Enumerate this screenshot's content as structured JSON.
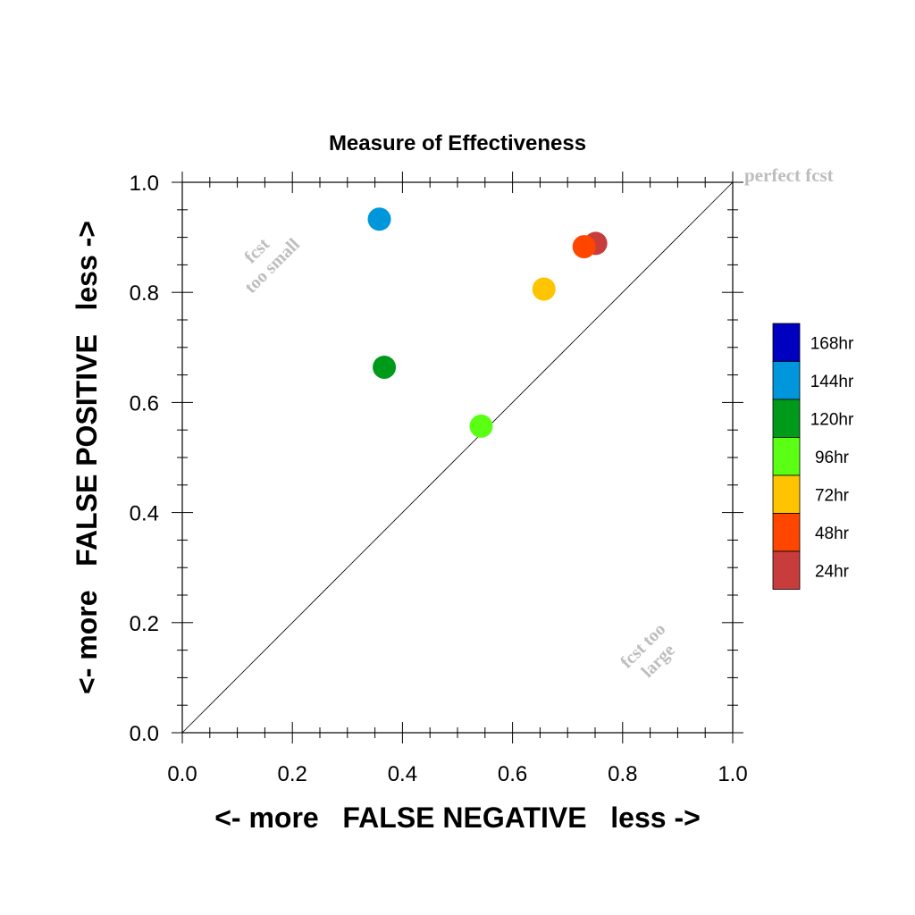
{
  "chart_data": {
    "type": "scatter",
    "title": "Measure of Effectiveness",
    "xlabel": "<- more   FALSE NEGATIVE   less ->",
    "ylabel": "<- more   FALSE POSITIVE   less ->",
    "xlim": [
      0.0,
      1.0
    ],
    "ylim": [
      0.0,
      1.0
    ],
    "x_ticks": [
      "0.0",
      "0.2",
      "0.4",
      "0.6",
      "0.8",
      "1.0"
    ],
    "y_ticks": [
      "0.0",
      "0.2",
      "0.4",
      "0.6",
      "0.8",
      "1.0"
    ],
    "grid": false,
    "reference_line": {
      "from": [
        0.0,
        0.0
      ],
      "to": [
        1.0,
        1.0
      ]
    },
    "annotations": {
      "perfect": "perfect fcst",
      "too_small": [
        "fcst",
        "too small"
      ],
      "too_large": [
        "fcst too",
        "large"
      ]
    },
    "legend": {
      "placement": "right",
      "entries": [
        {
          "label": "168hr",
          "color": "#0000c0"
        },
        {
          "label": "144hr",
          "color": "#0096dc"
        },
        {
          "label": "120hr",
          "color": "#009a1a"
        },
        {
          "label": "96hr",
          "color": "#5aff14"
        },
        {
          "label": "72hr",
          "color": "#ffc400"
        },
        {
          "label": "48hr",
          "color": "#ff4600"
        },
        {
          "label": "24hr",
          "color": "#c83c3c"
        }
      ]
    },
    "series": [
      {
        "name": "24hr",
        "color": "#c83c3c",
        "x": 0.751,
        "y": 0.889
      },
      {
        "name": "48hr",
        "color": "#ff4600",
        "x": 0.73,
        "y": 0.883
      },
      {
        "name": "72hr",
        "color": "#ffc400",
        "x": 0.657,
        "y": 0.806
      },
      {
        "name": "96hr",
        "color": "#5aff14",
        "x": 0.543,
        "y": 0.557
      },
      {
        "name": "120hr",
        "color": "#009a1a",
        "x": 0.367,
        "y": 0.664
      },
      {
        "name": "144hr",
        "color": "#0096dc",
        "x": 0.358,
        "y": 0.933
      }
    ]
  }
}
